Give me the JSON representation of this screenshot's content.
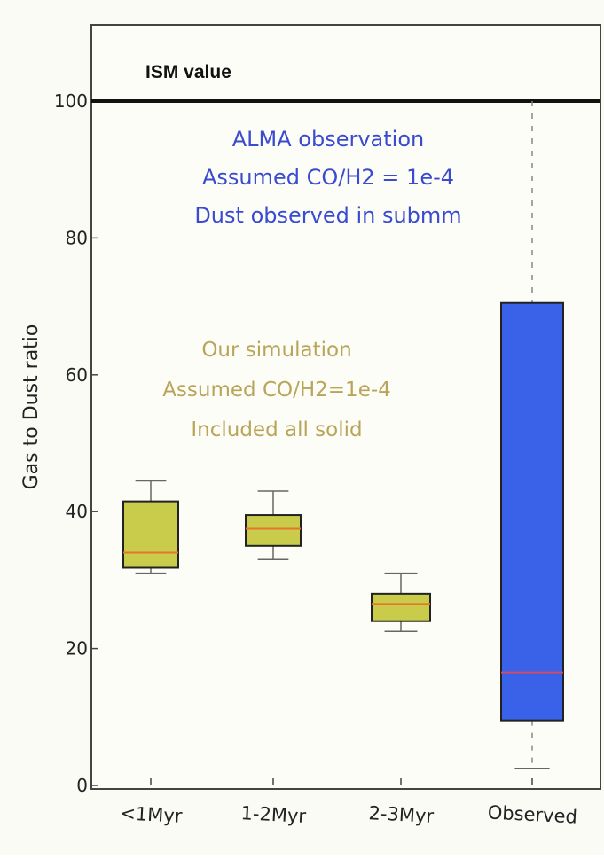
{
  "slide": {
    "header_fragment_text": "",
    "header_fragment_color": "#e8281c"
  },
  "chart_data": {
    "type": "box",
    "title": "",
    "xlabel": "",
    "ylabel": "Gas to Dust ratio",
    "ylim": [
      0,
      106
    ],
    "yticks": [
      0,
      20,
      40,
      60,
      80,
      100
    ],
    "categories": [
      "<1Myr",
      "1-2Myr",
      "2-3Myr",
      "Observed"
    ],
    "boxes": [
      {
        "category": "<1Myr",
        "whisker_low": 31,
        "q1": 31.8,
        "median": 34,
        "q3": 41.5,
        "whisker_high": 44.5,
        "fill": "#c9cc4a",
        "median_color": "#e8742a"
      },
      {
        "category": "1-2Myr",
        "whisker_low": 33,
        "q1": 35,
        "median": 37.5,
        "q3": 39.5,
        "whisker_high": 43,
        "fill": "#c9cc4a",
        "median_color": "#e8742a"
      },
      {
        "category": "2-3Myr",
        "whisker_low": 22.5,
        "q1": 24,
        "median": 26.5,
        "q3": 28,
        "whisker_high": 31,
        "fill": "#c9cc4a",
        "median_color": "#e8742a"
      },
      {
        "category": "Observed",
        "whisker_low": 2.5,
        "q1": 9.5,
        "median": 16.5,
        "q3": 70.5,
        "whisker_high": 100,
        "fill": "#3a62e8",
        "median_color": "#d04a6a"
      }
    ],
    "reference_line": {
      "value": 100,
      "label": "ISM value"
    },
    "annotations": {
      "alma": {
        "lines": [
          "ALMA observation",
          "Assumed CO/H2 = 1e-4",
          "Dust observed in submm"
        ],
        "color": "#3a4bd0"
      },
      "simulation": {
        "lines": [
          "Our simulation",
          "Assumed CO/H2=1e-4",
          "Included all solid"
        ],
        "color": "#b9a55a"
      }
    },
    "grid": false,
    "legend": "none"
  }
}
